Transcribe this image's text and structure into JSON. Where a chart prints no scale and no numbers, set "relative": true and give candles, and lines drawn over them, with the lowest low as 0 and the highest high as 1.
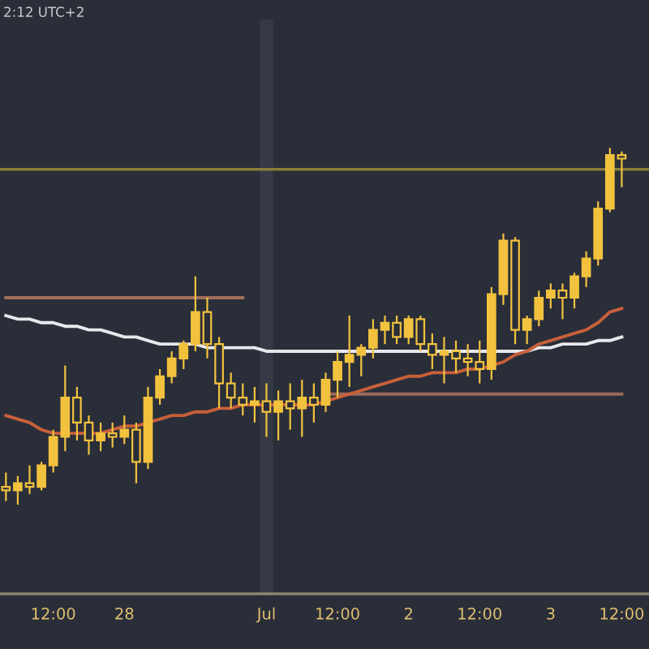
{
  "chart_data": {
    "type": "candlestick",
    "relative": true,
    "tick_labels": "x",
    "grid": false,
    "legend": false,
    "annotations": [
      "2:12 UTC+2"
    ],
    "categories": [
      null,
      null,
      null,
      null,
      "12:00",
      null,
      null,
      null,
      null,
      null,
      "28",
      null,
      null,
      null,
      null,
      null,
      null,
      null,
      null,
      null,
      null,
      null,
      "Jul",
      null,
      null,
      null,
      null,
      null,
      "12:00",
      null,
      null,
      null,
      null,
      null,
      "2",
      null,
      null,
      null,
      null,
      null,
      "12:00",
      null,
      null,
      null,
      null,
      null,
      "3",
      null,
      null,
      null,
      null,
      null,
      "12:00"
    ],
    "ref_lines": [
      {
        "axis": "x",
        "value": "Jul",
        "color": "#363a46"
      },
      {
        "axis": "y",
        "value": 0.94,
        "color": "#8a7d3a"
      }
    ],
    "color": "#f2c23e",
    "ohlc": [
      [
        0.05,
        0.09,
        0.01,
        0.04
      ],
      [
        0.04,
        0.08,
        0,
        0.06
      ],
      [
        0.06,
        0.11,
        0.03,
        0.05
      ],
      [
        0.05,
        0.12,
        0.04,
        0.11
      ],
      [
        0.11,
        0.21,
        0.09,
        0.19
      ],
      [
        0.19,
        0.39,
        0.15,
        0.3
      ],
      [
        0.3,
        0.33,
        0.18,
        0.23
      ],
      [
        0.23,
        0.25,
        0.14,
        0.18
      ],
      [
        0.18,
        0.23,
        0.15,
        0.2
      ],
      [
        0.2,
        0.23,
        0.16,
        0.19
      ],
      [
        0.19,
        0.25,
        0.17,
        0.21
      ],
      [
        0.21,
        0.23,
        0.06,
        0.12
      ],
      [
        0.12,
        0.33,
        0.1,
        0.3
      ],
      [
        0.3,
        0.38,
        0.28,
        0.36
      ],
      [
        0.36,
        0.43,
        0.34,
        0.41
      ],
      [
        0.41,
        0.46,
        0.38,
        0.45
      ],
      [
        0.45,
        0.64,
        0.43,
        0.54
      ],
      [
        0.54,
        0.58,
        0.41,
        0.45
      ],
      [
        0.45,
        0.47,
        0.27,
        0.34
      ],
      [
        0.34,
        0.37,
        0.27,
        0.3
      ],
      [
        0.3,
        0.34,
        0.25,
        0.28
      ],
      [
        0.28,
        0.33,
        0.23,
        0.29
      ],
      [
        0.29,
        0.34,
        0.19,
        0.26
      ],
      [
        0.26,
        0.32,
        0.18,
        0.29
      ],
      [
        0.29,
        0.34,
        0.21,
        0.27
      ],
      [
        0.27,
        0.35,
        0.19,
        0.3
      ],
      [
        0.3,
        0.34,
        0.23,
        0.28
      ],
      [
        0.28,
        0.37,
        0.26,
        0.35
      ],
      [
        0.35,
        0.43,
        0.3,
        0.4
      ],
      [
        0.4,
        0.53,
        0.33,
        0.42
      ],
      [
        0.42,
        0.45,
        0.36,
        0.44
      ],
      [
        0.44,
        0.52,
        0.41,
        0.49
      ],
      [
        0.49,
        0.53,
        0.45,
        0.51
      ],
      [
        0.51,
        0.53,
        0.45,
        0.47
      ],
      [
        0.47,
        0.53,
        0.45,
        0.52
      ],
      [
        0.52,
        0.53,
        0.43,
        0.45
      ],
      [
        0.45,
        0.48,
        0.38,
        0.42
      ],
      [
        0.42,
        0.47,
        0.34,
        0.43
      ],
      [
        0.43,
        0.46,
        0.37,
        0.41
      ],
      [
        0.41,
        0.45,
        0.36,
        0.4
      ],
      [
        0.4,
        0.46,
        0.34,
        0.38
      ],
      [
        0.38,
        0.61,
        0.35,
        0.59
      ],
      [
        0.59,
        0.76,
        0.56,
        0.74
      ],
      [
        0.74,
        0.75,
        0.45,
        0.49
      ],
      [
        0.49,
        0.53,
        0.45,
        0.52
      ],
      [
        0.52,
        0.6,
        0.5,
        0.58
      ],
      [
        0.58,
        0.62,
        0.55,
        0.6
      ],
      [
        0.6,
        0.62,
        0.52,
        0.58
      ],
      [
        0.58,
        0.65,
        0.55,
        0.64
      ],
      [
        0.64,
        0.71,
        0.61,
        0.69
      ],
      [
        0.69,
        0.85,
        0.67,
        0.83
      ],
      [
        0.83,
        1,
        0.82,
        0.98
      ],
      [
        0.98,
        0.99,
        0.89,
        0.97
      ]
    ],
    "series": [
      {
        "type": "line",
        "color": "#a0705a",
        "values": [
          0.58,
          0.58,
          0.58,
          0.58,
          0.58,
          0.58,
          0.58,
          0.58,
          0.58,
          0.58,
          0.58,
          0.58,
          0.58,
          0.58,
          0.58,
          0.58,
          0.58,
          0.58,
          0.58,
          0.58,
          0.58,
          null,
          null,
          null,
          null,
          null,
          null,
          null,
          null,
          null,
          null,
          null,
          null,
          null,
          null,
          null,
          null,
          null,
          null,
          null,
          null,
          null,
          null,
          null,
          null,
          null,
          null,
          null,
          null,
          null,
          null,
          null,
          null
        ]
      },
      {
        "type": "line",
        "color": "#9a6a5a",
        "values": [
          null,
          null,
          null,
          null,
          null,
          null,
          null,
          null,
          null,
          null,
          null,
          null,
          null,
          null,
          null,
          null,
          null,
          null,
          null,
          null,
          null,
          null,
          null,
          null,
          null,
          null,
          null,
          0.31,
          0.31,
          0.31,
          0.31,
          0.31,
          0.31,
          0.31,
          0.31,
          0.31,
          0.31,
          0.31,
          0.31,
          0.31,
          0.31,
          0.31,
          0.31,
          0.31,
          0.31,
          0.31,
          0.31,
          0.31,
          0.31,
          0.31,
          0.31,
          0.31,
          0.31
        ]
      },
      {
        "type": "line",
        "color": "#e8e8ec",
        "values": [
          0.53,
          0.52,
          0.52,
          0.51,
          0.51,
          0.5,
          0.5,
          0.49,
          0.49,
          0.48,
          0.47,
          0.47,
          0.46,
          0.45,
          0.45,
          0.45,
          0.45,
          0.44,
          0.44,
          0.44,
          0.44,
          0.44,
          0.43,
          0.43,
          0.43,
          0.43,
          0.43,
          0.43,
          0.43,
          0.43,
          0.43,
          0.43,
          0.43,
          0.43,
          0.43,
          0.43,
          0.43,
          0.43,
          0.43,
          0.43,
          0.43,
          0.43,
          0.43,
          0.43,
          0.43,
          0.44,
          0.44,
          0.45,
          0.45,
          0.45,
          0.46,
          0.46,
          0.47
        ]
      },
      {
        "type": "line",
        "color": "#c8603a",
        "values": [
          0.25,
          0.24,
          0.23,
          0.21,
          0.2,
          0.2,
          0.2,
          0.2,
          0.2,
          0.21,
          0.22,
          0.22,
          0.23,
          0.24,
          0.25,
          0.25,
          0.26,
          0.26,
          0.27,
          0.27,
          0.28,
          0.28,
          0.28,
          0.28,
          0.28,
          0.28,
          0.28,
          0.29,
          0.3,
          0.31,
          0.32,
          0.33,
          0.34,
          0.35,
          0.36,
          0.36,
          0.37,
          0.37,
          0.37,
          0.38,
          0.38,
          0.39,
          0.4,
          0.42,
          0.43,
          0.45,
          0.46,
          0.47,
          0.48,
          0.49,
          0.51,
          0.54,
          0.55
        ]
      }
    ]
  }
}
